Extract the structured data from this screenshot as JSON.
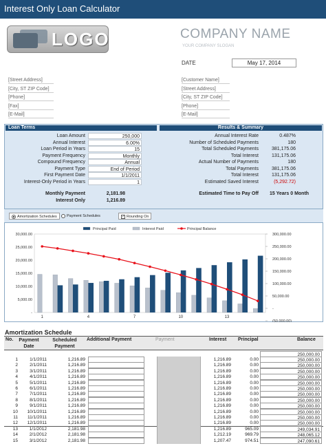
{
  "app": {
    "title": "Interest Only Loan Calculator",
    "logo_text": "LOGO",
    "company_name": "COMPANY NAME",
    "company_slogan": "YOUR COMPANY SLOGAN",
    "date_label": "DATE",
    "date_value": "May 17, 2014"
  },
  "address_left": [
    "[Street Address]",
    "[City, ST  ZIP Code]",
    "[Phone]",
    "[Fax]",
    "[E-Mail]"
  ],
  "address_right": [
    "[Customer Name]",
    "[Street Address]",
    "[City, ST  ZIP Code]",
    "[Phone]",
    "[E-Mail]"
  ],
  "loan_terms": {
    "header": "Loan Terms",
    "rows": [
      {
        "label": "Loan Amount",
        "value": "250,000"
      },
      {
        "label": "Annual Interest",
        "value": "6.00%"
      },
      {
        "label": "Loan Period in Years",
        "value": "15"
      },
      {
        "label": "Payment Frequency",
        "value": "Monthly"
      },
      {
        "label": "Compound Frequency",
        "value": "Annual"
      },
      {
        "label": "Payment Type",
        "value": "End of Period"
      },
      {
        "label": "First Payment Date",
        "value": "1/1/2011"
      },
      {
        "label": "Interest-Only Period in Years",
        "value": "1"
      }
    ],
    "monthly_payment_label": "Monthly Payment",
    "monthly_payment_value": "2,181.98",
    "interest_only_label": "Interest Only",
    "interest_only_value": "1,216.89"
  },
  "results": {
    "header": "Results & Summary",
    "rows": [
      {
        "label": "Annual Interest Rate",
        "value": "0.487%"
      },
      {
        "label": "Number of Scheduled Payments",
        "value": "180"
      },
      {
        "label": "Total Scheduled Payments",
        "value": "381,175.06"
      },
      {
        "label": "Total Interest",
        "value": "131,175.06"
      },
      {
        "label": "Actual Number of Payments",
        "value": "180"
      },
      {
        "label": "Total Payments",
        "value": "381,175.06"
      },
      {
        "label": "Total Interest",
        "value": "131,175.06"
      },
      {
        "label": "Estimated Saved Interest",
        "value": "(5,292.72)"
      }
    ],
    "payoff_label": "Estimated Time to Pay Off",
    "payoff_value": "15 Years 0 Month"
  },
  "options": {
    "amortization": "Amortization Schedules",
    "payment": "Payment Schedules",
    "rounding": "Rounding On"
  },
  "chart_data": {
    "type": "bar",
    "legend": [
      "Principal Paid",
      "Interest Paid",
      "Principal Balance"
    ],
    "categories": [
      1,
      2,
      3,
      4,
      5,
      6,
      7,
      8,
      9,
      10,
      11,
      12,
      13,
      14,
      15
    ],
    "x_tick_labels": [
      "1",
      "4",
      "7",
      "10",
      "13"
    ],
    "series": [
      {
        "name": "Principal Paid",
        "axis": "left",
        "values": [
          0,
          10400,
          10700,
          11300,
          12100,
          12700,
          13500,
          14300,
          15200,
          16100,
          17000,
          18100,
          19200,
          20300,
          21700
        ]
      },
      {
        "name": "Interest Paid",
        "axis": "left",
        "values": [
          14600,
          14400,
          13000,
          12300,
          11800,
          11200,
          10200,
          9400,
          8500,
          7600,
          6600,
          5600,
          4500,
          3300,
          1500
        ]
      },
      {
        "name": "Principal Balance",
        "axis": "right",
        "values": [
          250000,
          242000,
          232000,
          222000,
          210000,
          198000,
          183000,
          168000,
          152000,
          135000,
          117000,
          98000,
          77000,
          55000,
          30000
        ]
      }
    ],
    "y_left": {
      "ticks": [
        "30,000.00",
        "25,000.00",
        "20,000.00",
        "15,000.00",
        "10,000.00",
        "5,000.00",
        "-"
      ],
      "range": [
        0,
        30000
      ]
    },
    "y_right": {
      "ticks": [
        "300,000.00",
        "250,000.00",
        "200,000.00",
        "150,000.00",
        "100,000.00",
        "50,000.00",
        "-",
        "(50,000.00)"
      ],
      "range": [
        -50000,
        300000
      ]
    },
    "colors": {
      "principal": "#1f4e79",
      "interest": "#b8c0cc",
      "balance": "#e8111a"
    }
  },
  "amortization": {
    "title": "Amortization Schedule",
    "headers": {
      "no": "No.",
      "payment_date": "Payment Date",
      "scheduled_payment": "Scheduled Payment",
      "additional_payment": "Additional Payment",
      "payment": "Payment",
      "interest": "Interest",
      "principal": "Principal",
      "balance": "Balance"
    },
    "opening_balance": "250,000.00",
    "rows": [
      {
        "no": "1",
        "date": "1/1/2011",
        "sched": "1,216.89",
        "interest": "1,216.89",
        "principal": "0.00",
        "balance": "250,000.00"
      },
      {
        "no": "2",
        "date": "2/1/2011",
        "sched": "1,216.89",
        "interest": "1,216.89",
        "principal": "0.00",
        "balance": "250,000.00"
      },
      {
        "no": "3",
        "date": "3/1/2011",
        "sched": "1,216.89",
        "interest": "1,216.89",
        "principal": "0.00",
        "balance": "250,000.00"
      },
      {
        "no": "4",
        "date": "4/1/2011",
        "sched": "1,216.89",
        "interest": "1,216.89",
        "principal": "0.00",
        "balance": "250,000.00"
      },
      {
        "no": "5",
        "date": "5/1/2011",
        "sched": "1,216.89",
        "interest": "1,216.89",
        "principal": "0.00",
        "balance": "250,000.00"
      },
      {
        "no": "6",
        "date": "6/1/2011",
        "sched": "1,216.89",
        "interest": "1,216.89",
        "principal": "0.00",
        "balance": "250,000.00"
      },
      {
        "no": "7",
        "date": "7/1/2011",
        "sched": "1,216.89",
        "interest": "1,216.89",
        "principal": "0.00",
        "balance": "250,000.00"
      },
      {
        "no": "8",
        "date": "8/1/2011",
        "sched": "1,216.89",
        "interest": "1,216.89",
        "principal": "0.00",
        "balance": "250,000.00"
      },
      {
        "no": "9",
        "date": "9/1/2011",
        "sched": "1,216.89",
        "interest": "1,216.89",
        "principal": "0.00",
        "balance": "250,000.00"
      },
      {
        "no": "10",
        "date": "10/1/2011",
        "sched": "1,216.89",
        "interest": "1,216.89",
        "principal": "0.00",
        "balance": "250,000.00"
      },
      {
        "no": "11",
        "date": "11/1/2011",
        "sched": "1,216.89",
        "interest": "1,216.89",
        "principal": "0.00",
        "balance": "250,000.00"
      },
      {
        "no": "12",
        "date": "12/1/2011",
        "sched": "1,216.89",
        "interest": "1,216.89",
        "principal": "0.00",
        "balance": "250,000.00"
      },
      {
        "no": "13",
        "date": "1/1/2012",
        "sched": "2,181.98",
        "interest": "1,216.89",
        "principal": "965.09",
        "balance": "249,034.91"
      },
      {
        "no": "14",
        "date": "2/1/2012",
        "sched": "2,181.98",
        "interest": "1,212.19",
        "principal": "969.79",
        "balance": "248,065.12"
      },
      {
        "no": "15",
        "date": "3/1/2012",
        "sched": "2,181.98",
        "interest": "1,207.47",
        "principal": "974.51",
        "balance": "247,090.61"
      }
    ]
  }
}
